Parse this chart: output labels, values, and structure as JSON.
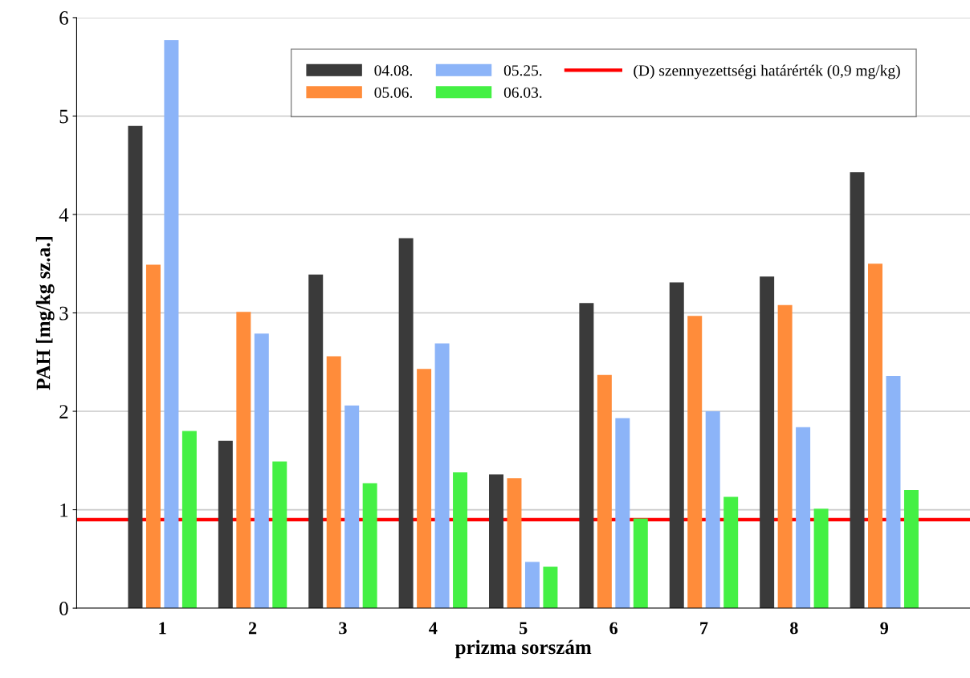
{
  "chart_data": {
    "type": "bar",
    "xlabel": "prizma sorszám",
    "ylabel": "PAH [mg/kg sz.a.]",
    "categories": [
      "1",
      "2",
      "3",
      "4",
      "5",
      "6",
      "7",
      "8",
      "9"
    ],
    "series": [
      {
        "name": "04.08.",
        "color": "#3a3a3a",
        "values": [
          4.9,
          1.7,
          3.39,
          3.76,
          1.36,
          3.1,
          3.31,
          3.37,
          4.43
        ]
      },
      {
        "name": "05.06.",
        "color": "#ff8c3a",
        "values": [
          3.49,
          3.01,
          2.56,
          2.43,
          1.32,
          2.37,
          2.97,
          3.08,
          3.5
        ]
      },
      {
        "name": "05.25.",
        "color": "#8cb4f8",
        "values": [
          5.77,
          2.79,
          2.06,
          2.69,
          0.47,
          1.93,
          2.0,
          1.84,
          2.36
        ]
      },
      {
        "name": "06.03.",
        "color": "#44f044",
        "values": [
          1.8,
          1.49,
          1.27,
          1.38,
          0.42,
          0.91,
          1.13,
          1.01,
          1.2
        ]
      }
    ],
    "ref_lines": [
      {
        "axis": "y",
        "value": 0.9,
        "label": "(D) szennyezettségi határérték (0,9 mg/kg)",
        "color": "#ff0000",
        "line_style": "solid"
      }
    ],
    "ylim": [
      0,
      6
    ],
    "yticks": [
      0,
      1,
      2,
      3,
      4,
      5,
      6
    ],
    "grid": "y",
    "legend": "top"
  }
}
